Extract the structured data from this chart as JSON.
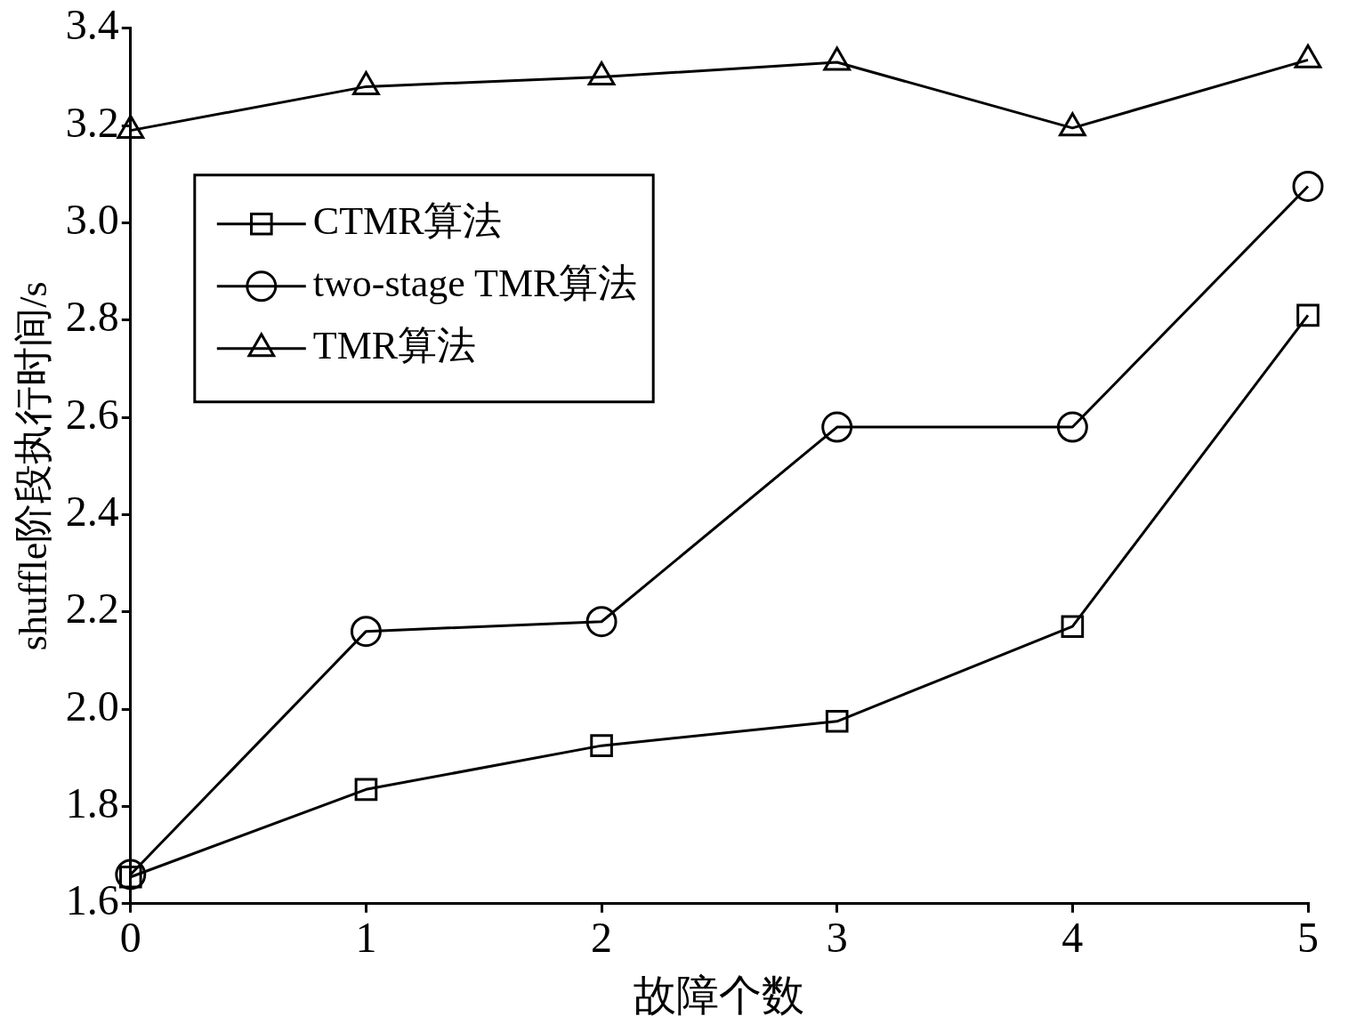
{
  "chart_data": {
    "type": "line",
    "xlabel": "故障个数",
    "ylabel": "shuffle阶段执行时间/s",
    "x": [
      0,
      1,
      2,
      3,
      4,
      5
    ],
    "series": [
      {
        "name": "CTMR算法",
        "color": "#000000",
        "marker": "square",
        "values": [
          1.655,
          1.835,
          1.925,
          1.975,
          2.17,
          2.81
        ]
      },
      {
        "name": "two-stage TMR算法",
        "color": "#000000",
        "marker": "circle",
        "values": [
          1.66,
          2.16,
          2.18,
          2.58,
          2.58,
          3.075
        ]
      },
      {
        "name": "TMR算法",
        "color": "#000000",
        "marker": "triangle",
        "values": [
          3.19,
          3.28,
          3.3,
          3.33,
          3.195,
          3.335
        ]
      }
    ],
    "xlim": [
      0,
      5
    ],
    "xticks": [
      0,
      1,
      2,
      3,
      4,
      5
    ],
    "ylim": [
      1.6,
      3.4
    ],
    "yticks": [
      {
        "value": 1.6,
        "label": "1.6"
      },
      {
        "value": 1.8,
        "label": "1.8"
      },
      {
        "value": 2.0,
        "label": "2.0"
      },
      {
        "value": 2.2,
        "label": "2.2"
      },
      {
        "value": 2.4,
        "label": "2.4"
      },
      {
        "value": 2.6,
        "label": "2.6"
      },
      {
        "value": 2.8,
        "label": "2.8"
      },
      {
        "value": 3.0,
        "label": "3.0"
      },
      {
        "value": 3.2,
        "label": "3.2"
      },
      {
        "value": 3.4,
        "label": "3.4"
      }
    ],
    "grid": false,
    "legend": "top left",
    "line_style": "solid"
  }
}
